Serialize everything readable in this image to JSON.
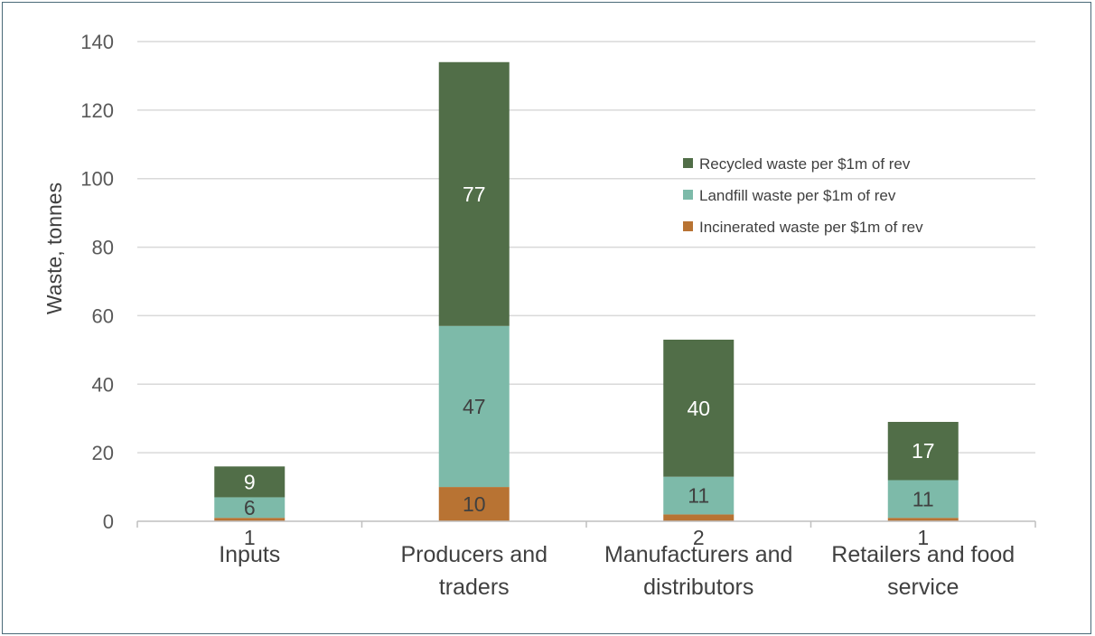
{
  "chart_data": {
    "type": "bar",
    "stacked": true,
    "title": "",
    "xlabel": "",
    "ylabel": "Waste, tonnes",
    "ylim": [
      0,
      140
    ],
    "yticks": [
      0,
      20,
      40,
      60,
      80,
      100,
      120,
      140
    ],
    "grid": true,
    "legend_position": "top-right",
    "categories": [
      [
        "Inputs"
      ],
      [
        "Producers and",
        "traders"
      ],
      [
        "Manufacturers and",
        "distributors"
      ],
      [
        "Retailers and food",
        "service"
      ]
    ],
    "series": [
      {
        "name": "Incinerated waste per $1m of rev",
        "color": "#b87333",
        "label_color": "#404040",
        "values": [
          1,
          10,
          2,
          1
        ]
      },
      {
        "name": "Landfill waste per $1m of rev",
        "color": "#7dbaa9",
        "label_color": "#404040",
        "values": [
          6,
          47,
          11,
          11
        ]
      },
      {
        "name": "Recycled waste per $1m of rev",
        "color": "#516e48",
        "label_color": "#ffffff",
        "values": [
          9,
          77,
          40,
          17
        ]
      }
    ],
    "legend_order": [
      2,
      1,
      0
    ]
  }
}
